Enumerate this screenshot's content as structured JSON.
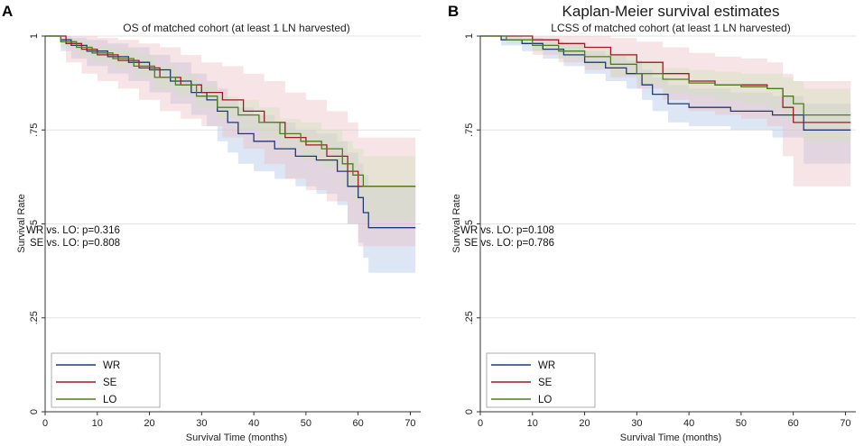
{
  "chart_data": [
    {
      "panel": "A",
      "type": "line",
      "step": true,
      "title": "",
      "subtitle": "OS of matched cohort (at least 1 LN harvested)",
      "xlabel": "Survival Time (months)",
      "ylabel": "Survival Rate",
      "xlim": [
        0,
        72
      ],
      "ylim": [
        0,
        1
      ],
      "xticks": [
        0,
        10,
        20,
        30,
        40,
        50,
        60,
        70
      ],
      "yticks": [
        0,
        0.25,
        0.5,
        0.75,
        1
      ],
      "ytick_labels": [
        "0",
        ".25",
        ".5",
        ".75",
        "1"
      ],
      "grid": true,
      "legend_position": "bottom-left",
      "annotations": [
        "WR vs. LO: p=0.316",
        "SE vs. LO: p=0.808"
      ],
      "series": [
        {
          "name": "WR",
          "color": "#1f3a73",
          "band_color": "#a9c1e3",
          "x": [
            0,
            3,
            5,
            8,
            12,
            16,
            20,
            24,
            28,
            31,
            33,
            35,
            37,
            40,
            44,
            48,
            52,
            56,
            58,
            60,
            61,
            62,
            71
          ],
          "y": [
            1,
            0.99,
            0.975,
            0.96,
            0.945,
            0.93,
            0.91,
            0.88,
            0.85,
            0.83,
            0.8,
            0.77,
            0.74,
            0.72,
            0.7,
            0.68,
            0.67,
            0.64,
            0.6,
            0.57,
            0.53,
            0.49,
            0.49
          ],
          "ci_lower": [
            1,
            0.96,
            0.94,
            0.92,
            0.9,
            0.88,
            0.85,
            0.82,
            0.79,
            0.76,
            0.72,
            0.69,
            0.66,
            0.64,
            0.62,
            0.6,
            0.58,
            0.55,
            0.5,
            0.45,
            0.41,
            0.37,
            0.37
          ],
          "ci_upper": [
            1,
            1,
            0.995,
            0.99,
            0.98,
            0.97,
            0.95,
            0.93,
            0.9,
            0.88,
            0.86,
            0.83,
            0.81,
            0.79,
            0.77,
            0.75,
            0.74,
            0.72,
            0.69,
            0.66,
            0.63,
            0.6,
            0.6
          ]
        },
        {
          "name": "SE",
          "color": "#9b1c24",
          "band_color": "#ecbcc2",
          "x": [
            0,
            4,
            7,
            10,
            14,
            18,
            22,
            26,
            30,
            34,
            38,
            42,
            46,
            50,
            54,
            58,
            60,
            71
          ],
          "y": [
            1,
            0.98,
            0.965,
            0.95,
            0.935,
            0.915,
            0.89,
            0.87,
            0.85,
            0.83,
            0.8,
            0.77,
            0.73,
            0.71,
            0.68,
            0.64,
            0.6,
            0.6
          ],
          "ci_lower": [
            1,
            0.93,
            0.9,
            0.88,
            0.86,
            0.83,
            0.8,
            0.78,
            0.76,
            0.73,
            0.7,
            0.66,
            0.62,
            0.59,
            0.56,
            0.5,
            0.44,
            0.44
          ],
          "ci_upper": [
            1,
            1,
            1,
            0.995,
            0.99,
            0.98,
            0.97,
            0.95,
            0.93,
            0.92,
            0.9,
            0.88,
            0.85,
            0.83,
            0.8,
            0.77,
            0.73,
            0.73
          ]
        },
        {
          "name": "LO",
          "color": "#4c7d1f",
          "band_color": "#cfe2b8",
          "x": [
            0,
            3,
            6,
            9,
            13,
            17,
            21,
            25,
            29,
            33,
            37,
            41,
            45,
            49,
            53,
            57,
            59,
            61,
            71
          ],
          "y": [
            1,
            0.985,
            0.97,
            0.955,
            0.94,
            0.92,
            0.89,
            0.87,
            0.84,
            0.81,
            0.79,
            0.77,
            0.74,
            0.72,
            0.7,
            0.66,
            0.63,
            0.6,
            0.6
          ],
          "ci_lower": [
            1,
            0.97,
            0.95,
            0.93,
            0.915,
            0.89,
            0.86,
            0.84,
            0.81,
            0.78,
            0.75,
            0.73,
            0.7,
            0.67,
            0.65,
            0.6,
            0.56,
            0.51,
            0.51
          ],
          "ci_upper": [
            1,
            0.995,
            0.985,
            0.975,
            0.965,
            0.95,
            0.92,
            0.9,
            0.87,
            0.84,
            0.83,
            0.81,
            0.78,
            0.77,
            0.75,
            0.72,
            0.7,
            0.68,
            0.68
          ]
        }
      ]
    },
    {
      "panel": "B",
      "type": "line",
      "step": true,
      "title": "Kaplan-Meier survival estimates",
      "subtitle": "LCSS of matched cohort (at least 1 LN harvested)",
      "xlabel": "Survival Time (months)",
      "ylabel": "Survival Rate",
      "xlim": [
        0,
        72
      ],
      "ylim": [
        0,
        1
      ],
      "xticks": [
        0,
        10,
        20,
        30,
        40,
        50,
        60,
        70
      ],
      "yticks": [
        0,
        0.25,
        0.5,
        0.75,
        1
      ],
      "ytick_labels": [
        "0",
        ".25",
        ".5",
        ".75",
        "1"
      ],
      "grid": true,
      "legend_position": "bottom-left",
      "annotations": [
        "WR vs. LO: p=0.108",
        "SE vs. LO: p=0.786"
      ],
      "series": [
        {
          "name": "WR",
          "color": "#1f3a73",
          "band_color": "#a9c1e3",
          "x": [
            0,
            4,
            8,
            12,
            16,
            20,
            24,
            28,
            31,
            33,
            36,
            40,
            48,
            56,
            62,
            71
          ],
          "y": [
            1,
            0.99,
            0.98,
            0.965,
            0.95,
            0.93,
            0.915,
            0.9,
            0.87,
            0.845,
            0.82,
            0.81,
            0.8,
            0.79,
            0.75,
            0.75
          ],
          "ci_lower": [
            1,
            0.975,
            0.96,
            0.94,
            0.92,
            0.9,
            0.88,
            0.86,
            0.83,
            0.8,
            0.77,
            0.76,
            0.75,
            0.73,
            0.66,
            0.66
          ],
          "ci_upper": [
            1,
            1,
            0.995,
            0.985,
            0.975,
            0.96,
            0.95,
            0.935,
            0.91,
            0.89,
            0.87,
            0.86,
            0.85,
            0.84,
            0.82,
            0.82
          ]
        },
        {
          "name": "SE",
          "color": "#9b1c24",
          "band_color": "#ecbcc2",
          "x": [
            0,
            10,
            15,
            20,
            25,
            30,
            35,
            40,
            45,
            50,
            55,
            58,
            60,
            71
          ],
          "y": [
            1,
            0.99,
            0.98,
            0.97,
            0.95,
            0.93,
            0.9,
            0.88,
            0.87,
            0.87,
            0.86,
            0.81,
            0.77,
            0.77
          ],
          "ci_lower": [
            1,
            0.95,
            0.93,
            0.91,
            0.89,
            0.86,
            0.83,
            0.8,
            0.79,
            0.78,
            0.76,
            0.68,
            0.6,
            0.6
          ],
          "ci_upper": [
            1,
            1,
            1,
            1,
            0.995,
            0.985,
            0.97,
            0.955,
            0.945,
            0.94,
            0.93,
            0.9,
            0.88,
            0.88
          ]
        },
        {
          "name": "LO",
          "color": "#4c7d1f",
          "band_color": "#cfe2b8",
          "x": [
            0,
            5,
            10,
            15,
            20,
            25,
            30,
            35,
            40,
            45,
            50,
            55,
            58,
            60,
            62,
            71
          ],
          "y": [
            1,
            0.99,
            0.975,
            0.96,
            0.945,
            0.925,
            0.9,
            0.885,
            0.875,
            0.87,
            0.865,
            0.86,
            0.84,
            0.82,
            0.79,
            0.79
          ],
          "ci_lower": [
            1,
            0.98,
            0.96,
            0.94,
            0.92,
            0.895,
            0.87,
            0.85,
            0.84,
            0.83,
            0.82,
            0.81,
            0.78,
            0.76,
            0.72,
            0.72
          ],
          "ci_upper": [
            1,
            1,
            0.99,
            0.98,
            0.97,
            0.955,
            0.93,
            0.915,
            0.91,
            0.905,
            0.9,
            0.9,
            0.89,
            0.88,
            0.86,
            0.86
          ]
        }
      ]
    }
  ]
}
